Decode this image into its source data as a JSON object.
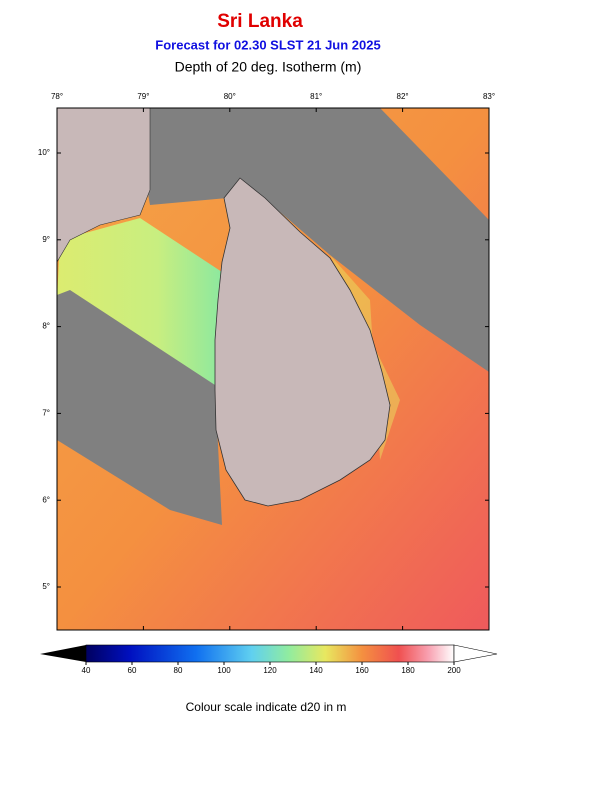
{
  "header": {
    "title": "Sri Lanka",
    "subtitle": "Forecast for  02.30 SLST 21 Jun 2025",
    "variable": "Depth of 20 deg. Isotherm (m)"
  },
  "map": {
    "lon_ticks": [
      {
        "value": 78,
        "label": "78°"
      },
      {
        "value": 79,
        "label": "79°"
      },
      {
        "value": 80,
        "label": "80°"
      },
      {
        "value": 81,
        "label": "81°"
      },
      {
        "value": 82,
        "label": "82°"
      },
      {
        "value": 83,
        "label": "83°"
      }
    ],
    "lat_ticks": [
      {
        "value": 10,
        "label": "10°"
      },
      {
        "value": 9,
        "label": "9°"
      },
      {
        "value": 8,
        "label": "8°"
      },
      {
        "value": 7,
        "label": "7°"
      },
      {
        "value": 6,
        "label": "6°"
      },
      {
        "value": 5,
        "label": "5°"
      }
    ]
  },
  "colorbar": {
    "ticks": [
      40,
      60,
      80,
      100,
      120,
      140,
      160,
      180,
      200
    ],
    "caption": "Colour scale indicate d20 in m"
  }
}
